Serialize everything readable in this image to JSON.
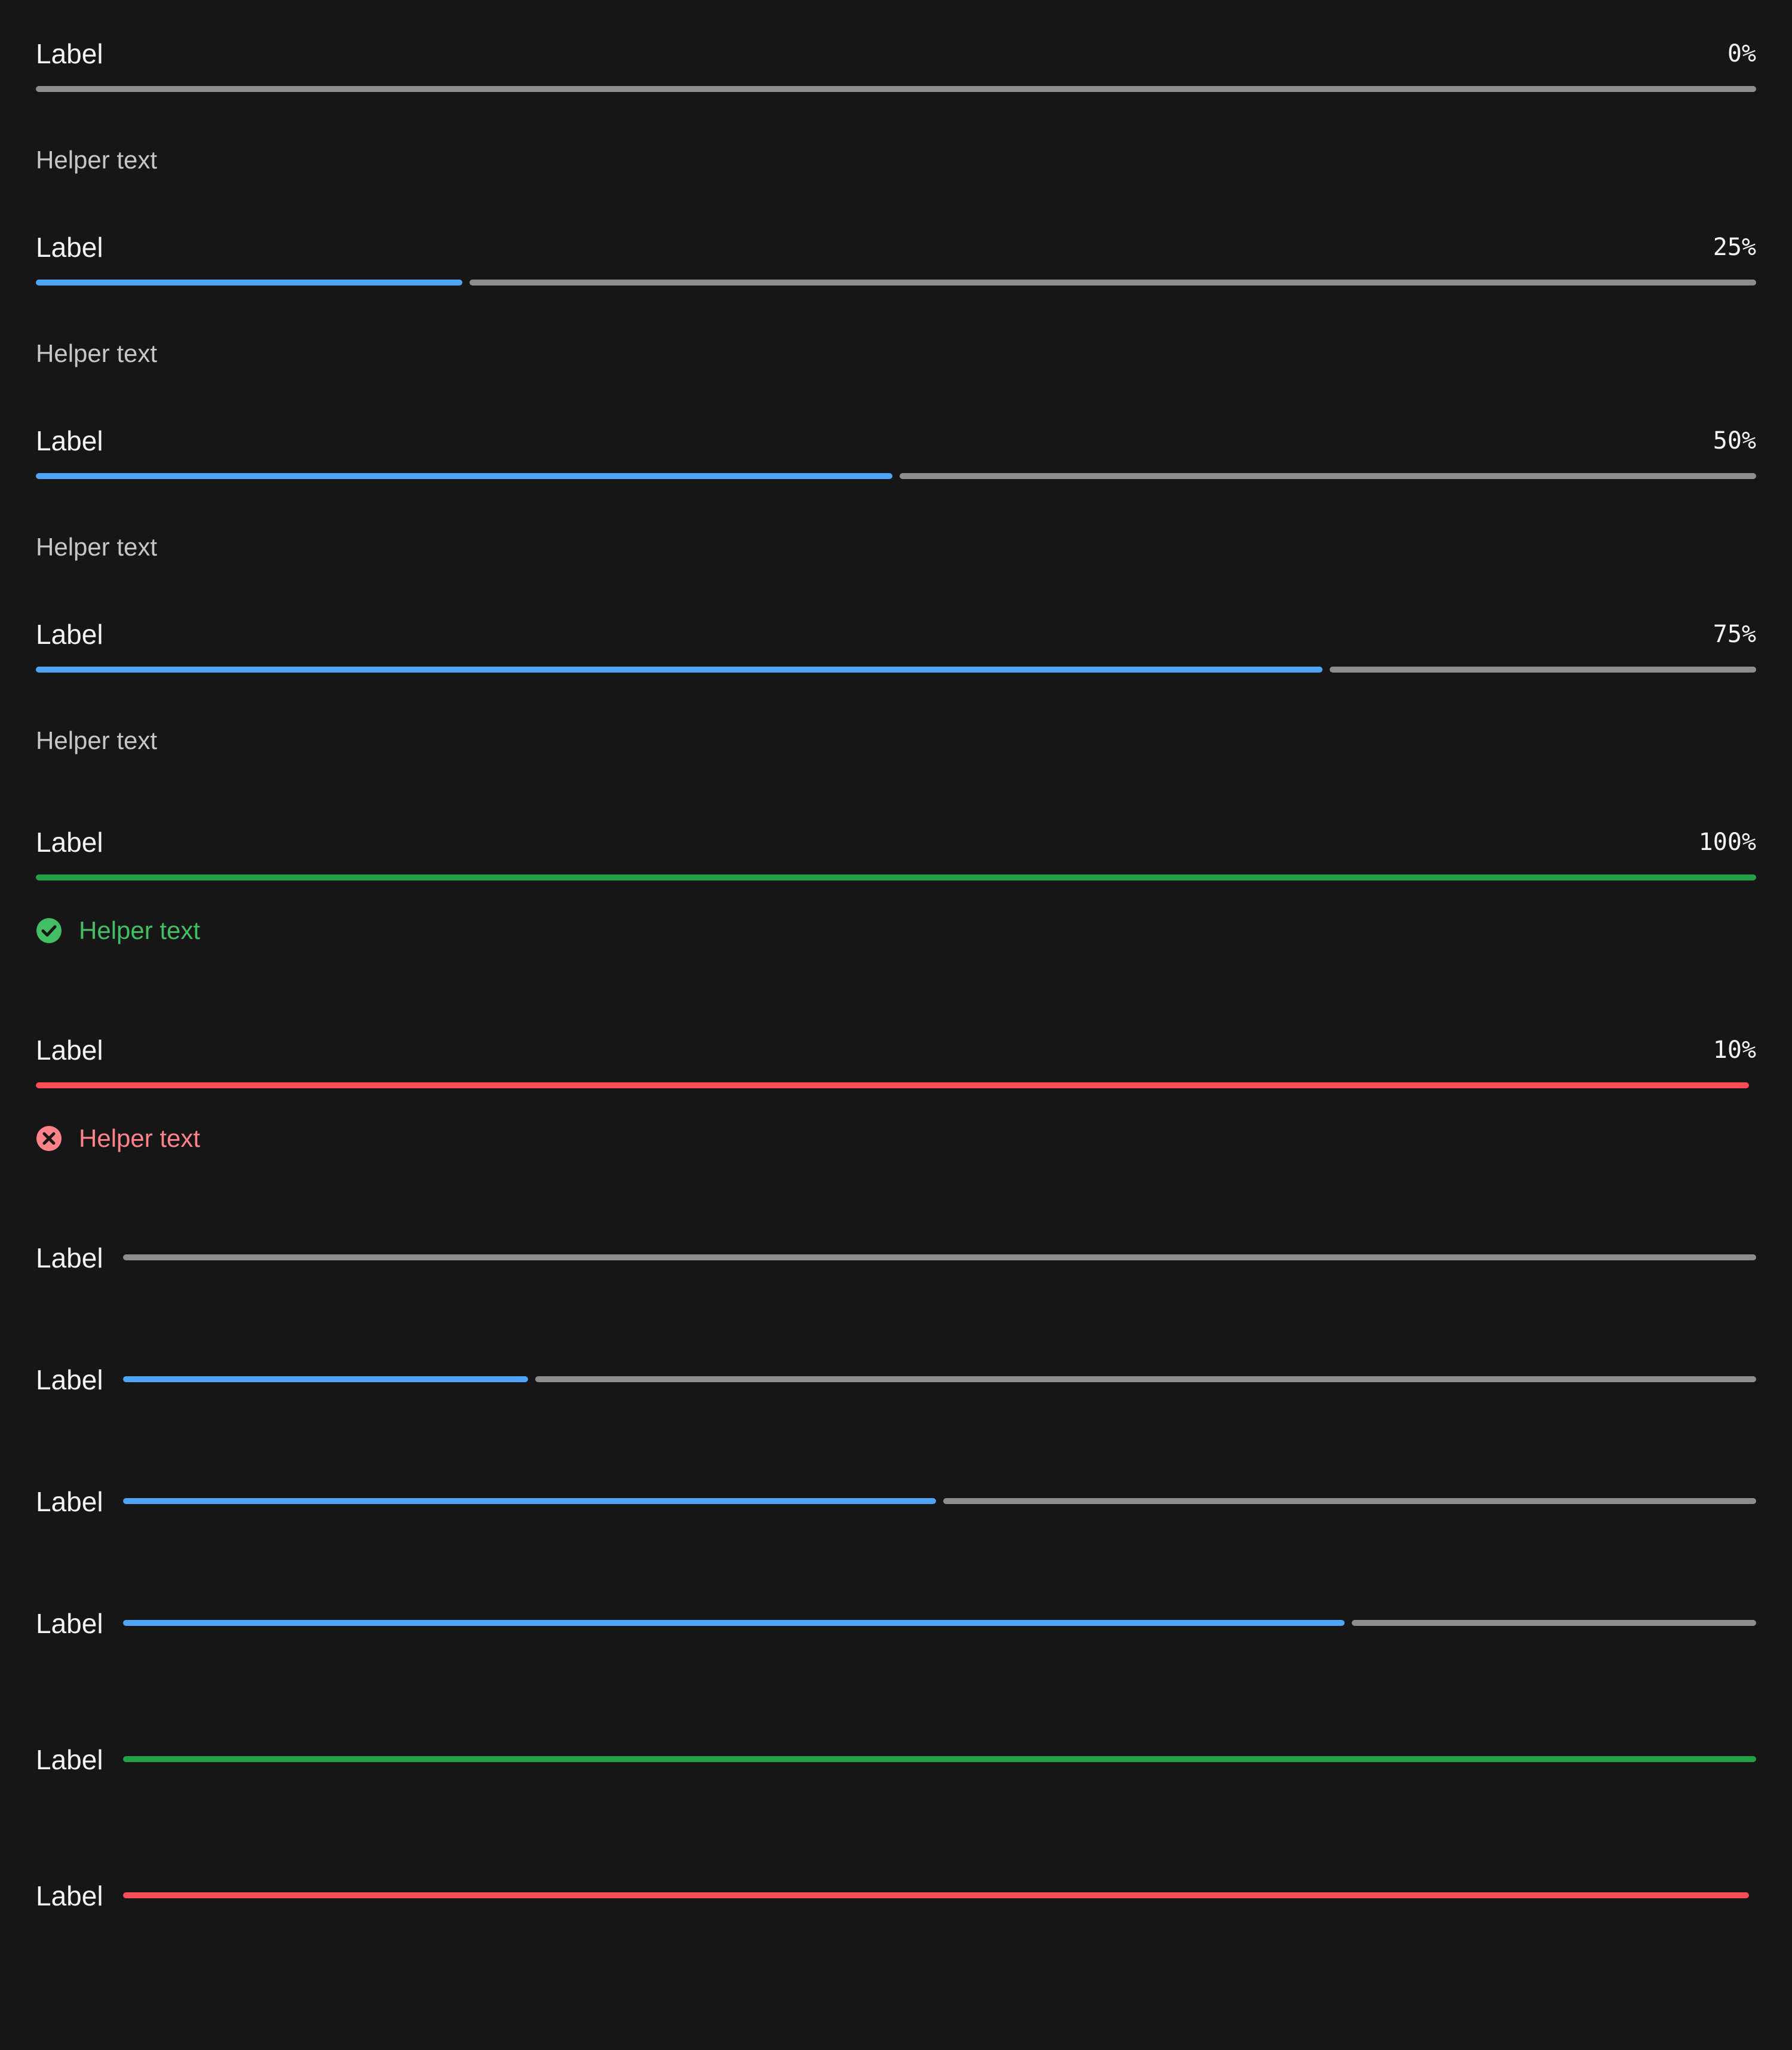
{
  "colors": {
    "background": "#161616",
    "track": "#8d8d8d",
    "fill": "#4ea4f5",
    "success": "#24a148",
    "error": "#fa4d56",
    "success_text": "#42be65",
    "error_text": "#ff8389"
  },
  "stacked": [
    {
      "label": "Label",
      "percent_text": "0%",
      "value": 0,
      "status": "active",
      "helper": "Helper text"
    },
    {
      "label": "Label",
      "percent_text": "25%",
      "value": 0.25,
      "status": "active",
      "helper": "Helper text"
    },
    {
      "label": "Label",
      "percent_text": "50%",
      "value": 0.5,
      "status": "active",
      "helper": "Helper text"
    },
    {
      "label": "Label",
      "percent_text": "75%",
      "value": 0.75,
      "status": "active",
      "helper": "Helper text"
    },
    {
      "label": "Label",
      "percent_text": "100%",
      "value": 1,
      "status": "finished",
      "helper": "Helper text",
      "helper_icon": "checkmark-filled-icon"
    },
    {
      "label": "Label",
      "percent_text": "10%",
      "value": 1,
      "status": "error",
      "helper": "Helper text",
      "helper_icon": "error-filled-icon"
    }
  ],
  "inline": [
    {
      "label": "Label",
      "value": 0,
      "status": "active"
    },
    {
      "label": "Label",
      "value": 0.25,
      "status": "active"
    },
    {
      "label": "Label",
      "value": 0.5,
      "status": "active"
    },
    {
      "label": "Label",
      "value": 0.75,
      "status": "active"
    },
    {
      "label": "Label",
      "value": 1,
      "status": "finished"
    },
    {
      "label": "Label",
      "value": 1,
      "status": "error"
    }
  ]
}
